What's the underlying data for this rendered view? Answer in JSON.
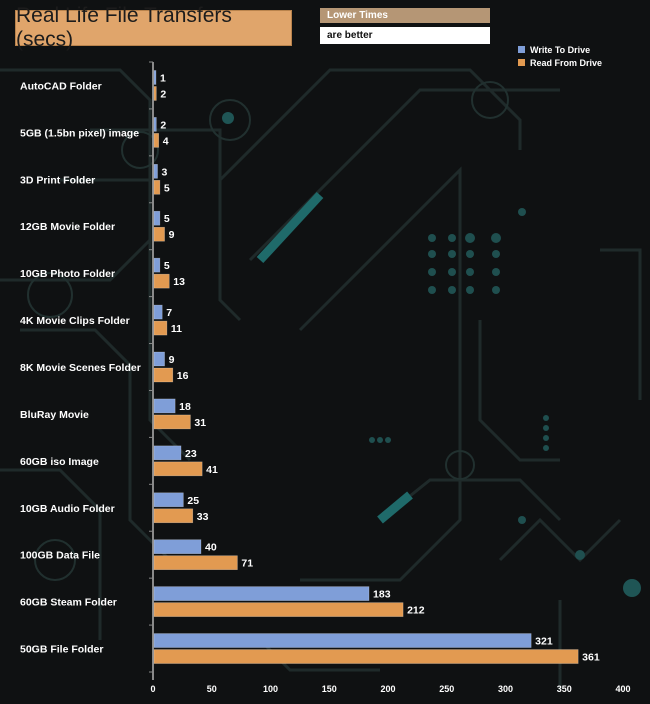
{
  "title": "Real Life File Transfers (secs)",
  "note": {
    "line1": "Lower Times",
    "line2": "are better"
  },
  "colors": {
    "write": "#7f9ed8",
    "read": "#e29a51",
    "title_bg": "#e0a56b",
    "axis": "#8a8a8a"
  },
  "chart_data": {
    "type": "bar",
    "orientation": "horizontal",
    "title": "Real Life File Transfers (secs)",
    "categories": [
      "AutoCAD Folder",
      "5GB (1.5bn pixel) image",
      "3D Print Folder",
      "12GB Movie Folder",
      "10GB Photo Folder",
      "4K Movie Clips Folder",
      "8K Movie Scenes Folder",
      "BluRay Movie",
      "60GB iso Image",
      "10GB Audio Folder",
      "100GB Data File",
      "60GB Steam Folder",
      "50GB File Folder"
    ],
    "series": [
      {
        "name": "Write To  Drive",
        "values": [
          1,
          2,
          3,
          5,
          5,
          7,
          9,
          18,
          23,
          25,
          40,
          183,
          321
        ]
      },
      {
        "name": "Read From  Drive",
        "values": [
          2,
          4,
          5,
          9,
          13,
          11,
          16,
          31,
          41,
          33,
          71,
          212,
          361
        ]
      }
    ],
    "xlim": [
      0,
      400
    ],
    "xticks": [
      0,
      50,
      100,
      150,
      200,
      250,
      300,
      350,
      400
    ],
    "legend": "top-right",
    "grid": false
  }
}
